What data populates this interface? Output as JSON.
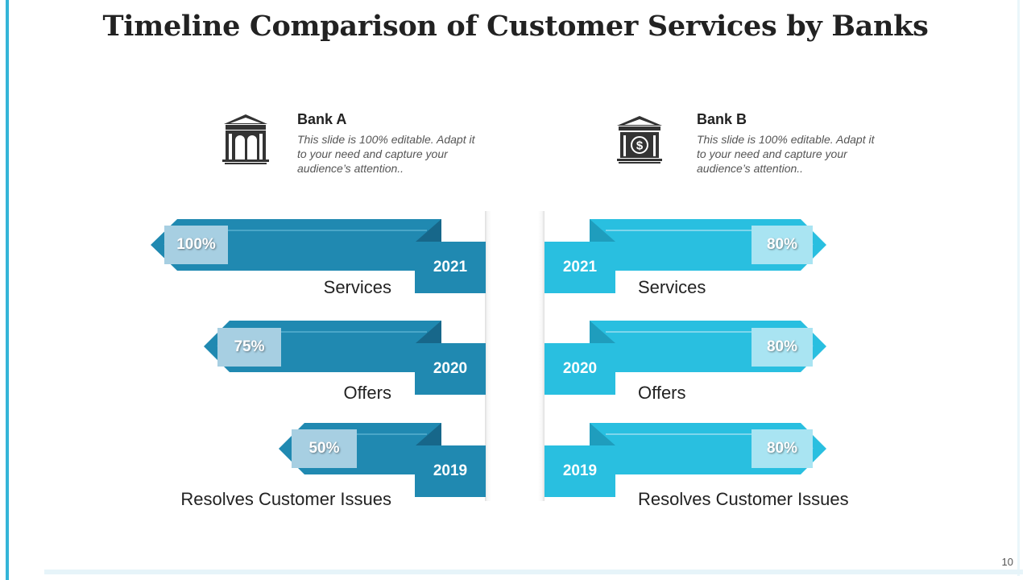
{
  "title": "Timeline Comparison of Customer Services by Banks",
  "page_number": "10",
  "colors": {
    "bank_a_main": "#2089b1",
    "bank_a_dark": "#17678a",
    "bank_a_box": "#a7cfe2",
    "bank_b_main": "#29bfe0",
    "bank_b_dark": "#1f9dbd",
    "bank_b_box": "#a9e4f2",
    "text": "#222222"
  },
  "banks": [
    {
      "name": "Bank A",
      "icon": "bank-building-icon",
      "description": "This slide is 100% editable. Adapt it to your need and capture your audience’s attention..",
      "rows": [
        {
          "year": "2021",
          "label": "Services",
          "percent": "100%",
          "value": 100
        },
        {
          "year": "2020",
          "label": "Offers",
          "percent": "75%",
          "value": 75
        },
        {
          "year": "2019",
          "label": "Resolves Customer Issues",
          "percent": "50%",
          "value": 50
        }
      ]
    },
    {
      "name": "Bank B",
      "icon": "bank-dollar-icon",
      "description": "This slide is 100% editable. Adapt it to your need and capture your audience’s attention..",
      "rows": [
        {
          "year": "2021",
          "label": "Services",
          "percent": "80%",
          "value": 80
        },
        {
          "year": "2020",
          "label": "Offers",
          "percent": "80%",
          "value": 80
        },
        {
          "year": "2019",
          "label": "Resolves Customer Issues",
          "percent": "80%",
          "value": 80
        }
      ]
    }
  ]
}
